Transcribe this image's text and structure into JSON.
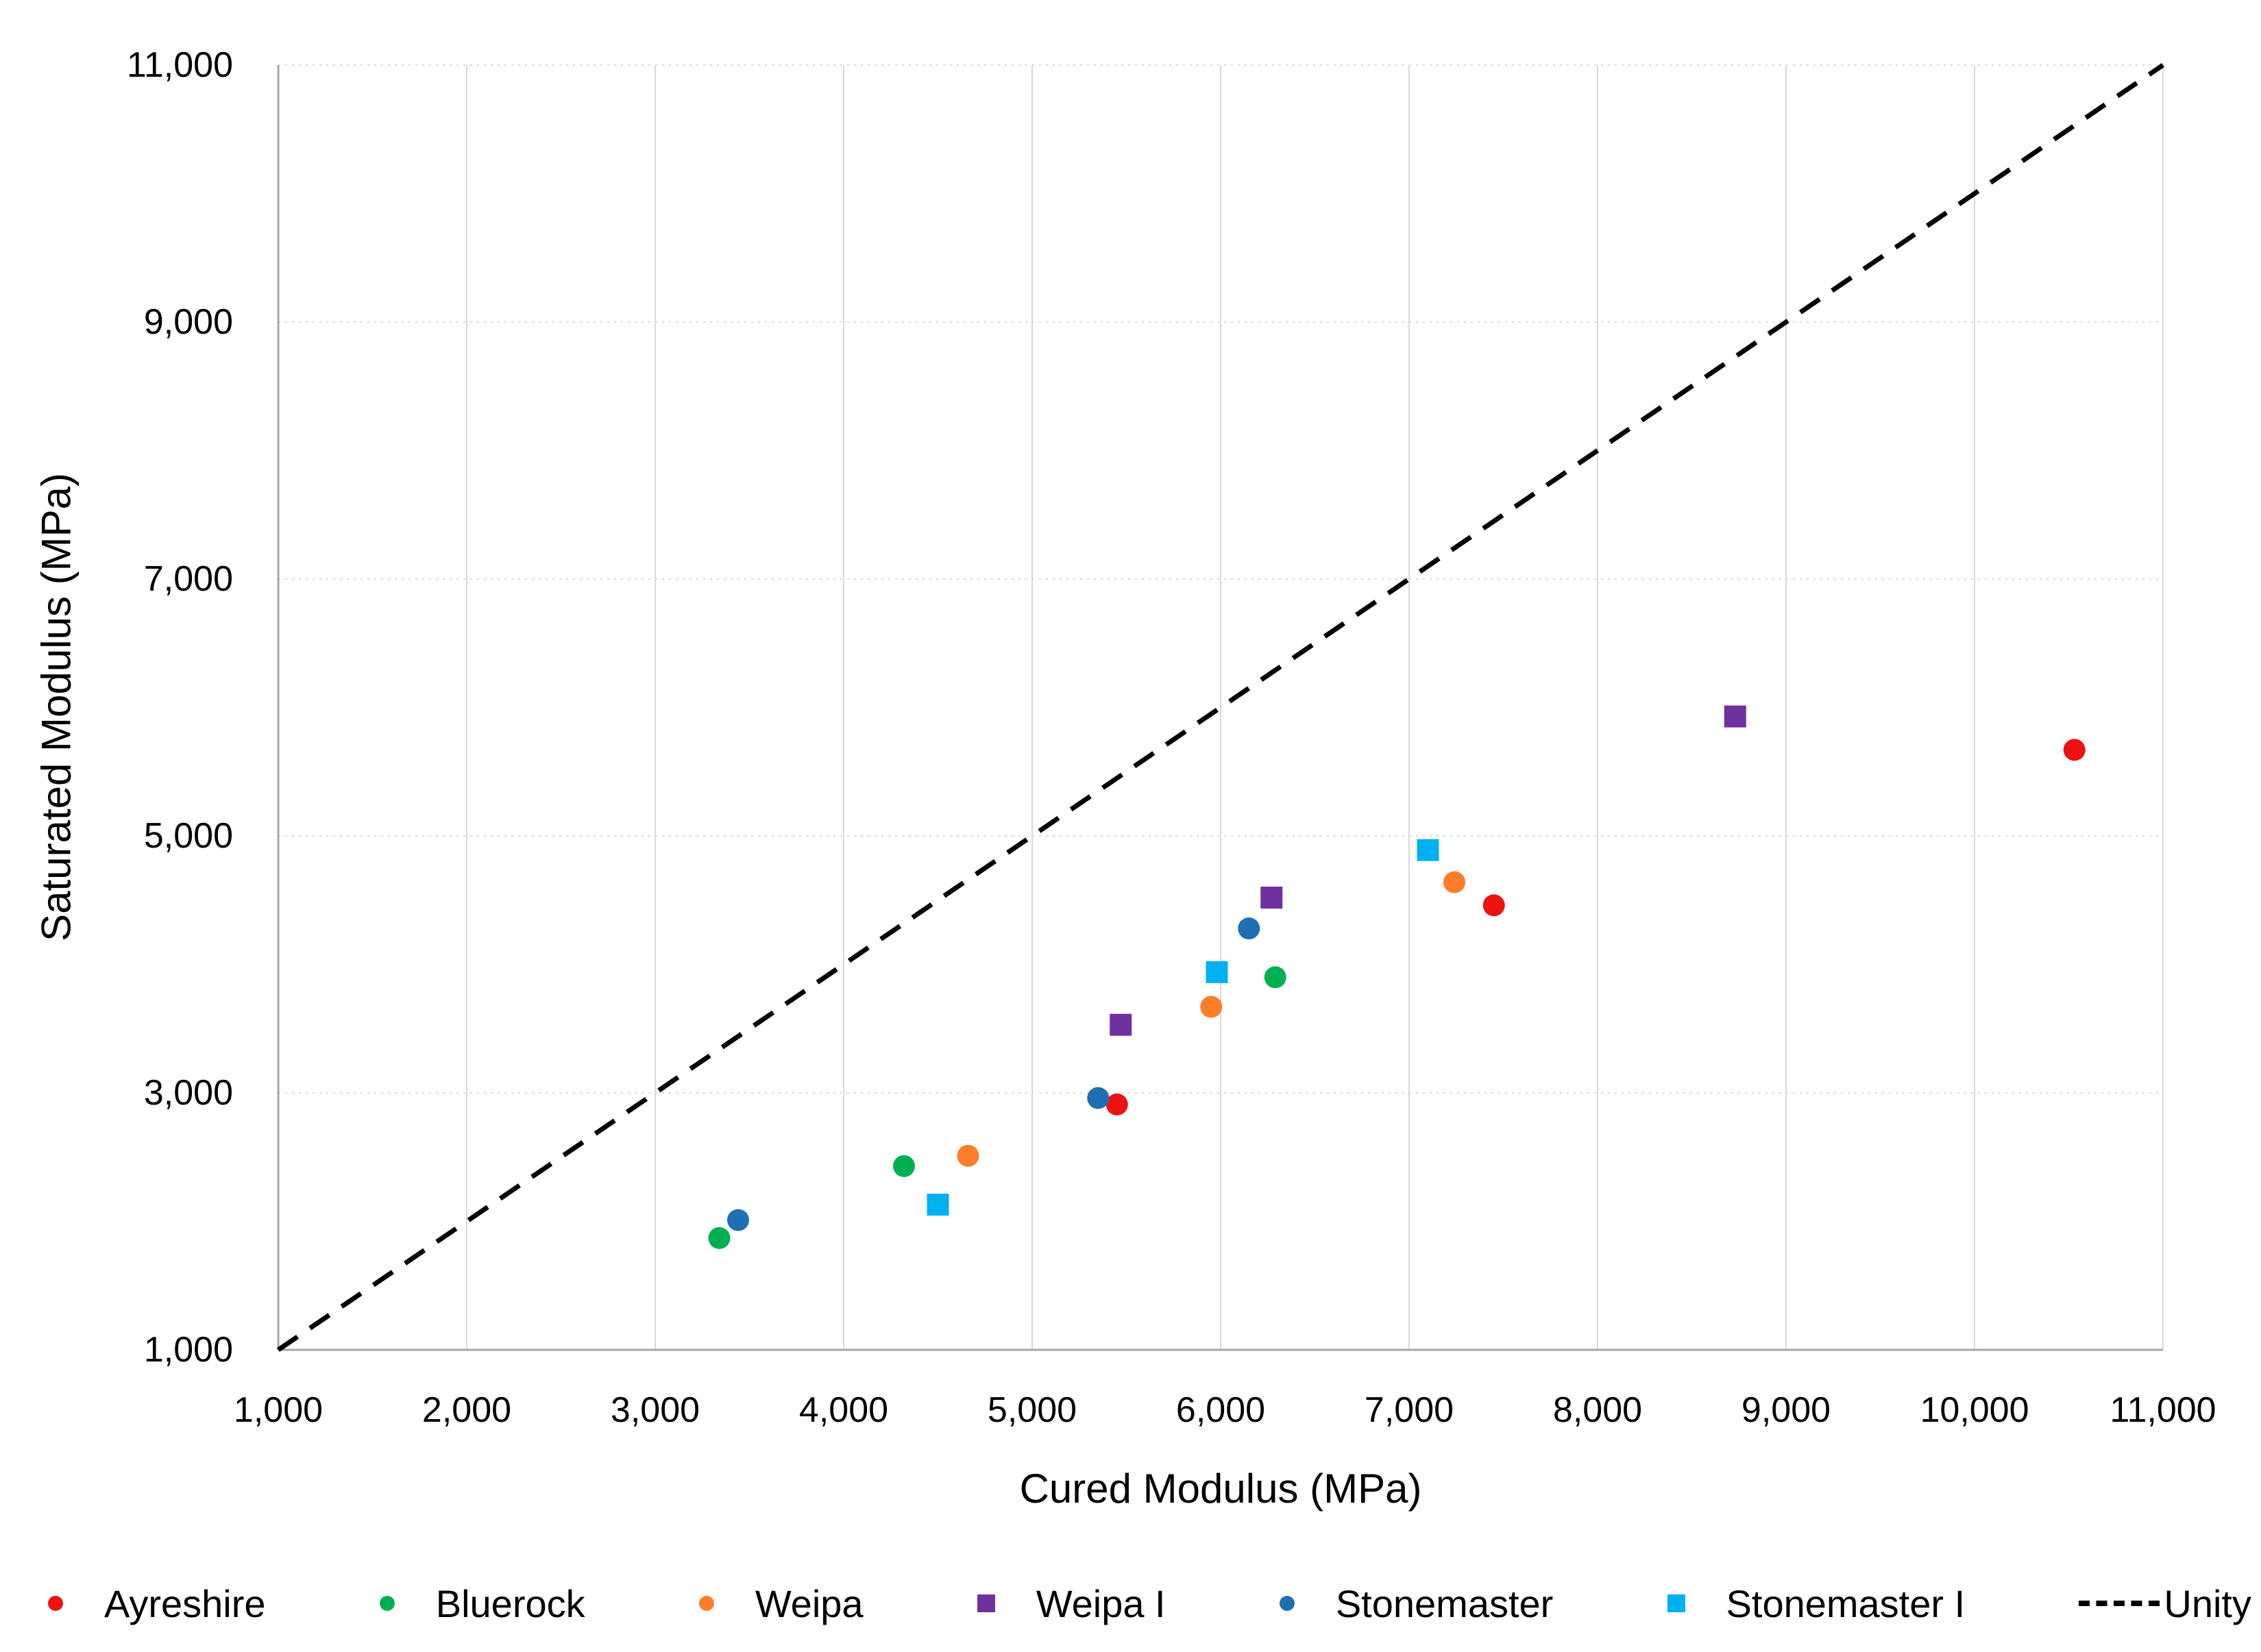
{
  "chart_data": {
    "type": "scatter",
    "title": "",
    "xlabel": "Cured Modulus (MPa)",
    "ylabel": "Saturated Modulus (MPa)",
    "xlim": [
      1000,
      11000
    ],
    "ylim": [
      1000,
      11000
    ],
    "grid": "on",
    "legend_position": "bottom",
    "x_ticks": [
      {
        "value": 1000,
        "label": "1,000"
      },
      {
        "value": 2000,
        "label": "2,000"
      },
      {
        "value": 3000,
        "label": "3,000"
      },
      {
        "value": 4000,
        "label": "4,000"
      },
      {
        "value": 5000,
        "label": "5,000"
      },
      {
        "value": 6000,
        "label": "6,000"
      },
      {
        "value": 7000,
        "label": "7,000"
      },
      {
        "value": 8000,
        "label": "8,000"
      },
      {
        "value": 9000,
        "label": "9,000"
      },
      {
        "value": 10000,
        "label": "10,000"
      },
      {
        "value": 11000,
        "label": "11,000"
      }
    ],
    "y_ticks": [
      {
        "value": 1000,
        "label": "1,000"
      },
      {
        "value": 3000,
        "label": "3,000"
      },
      {
        "value": 5000,
        "label": "5,000"
      },
      {
        "value": 7000,
        "label": "7,000"
      },
      {
        "value": 9000,
        "label": "9,000"
      },
      {
        "value": 11000,
        "label": "11,000"
      }
    ],
    "series": [
      {
        "name": "Ayreshire",
        "marker": "circle",
        "color": "#ee1111",
        "points": [
          [
            5450,
            2910
          ],
          [
            7450,
            4460
          ],
          [
            10530,
            5670
          ]
        ]
      },
      {
        "name": "Bluerock",
        "marker": "circle",
        "color": "#00b050",
        "points": [
          [
            3340,
            1870
          ],
          [
            4320,
            2430
          ],
          [
            6290,
            3900
          ]
        ]
      },
      {
        "name": "Weipa",
        "marker": "circle",
        "color": "#fd7e2a",
        "points": [
          [
            4660,
            2510
          ],
          [
            5950,
            3670
          ],
          [
            7240,
            4640
          ]
        ]
      },
      {
        "name": "Weipa I",
        "marker": "square",
        "color": "#7030a0",
        "points": [
          [
            5470,
            3530
          ],
          [
            6270,
            4520
          ],
          [
            8730,
            5930
          ]
        ]
      },
      {
        "name": "Stonemaster",
        "marker": "circle",
        "color": "#1f6fb5",
        "points": [
          [
            3440,
            2010
          ],
          [
            5350,
            2960
          ],
          [
            6150,
            4280
          ]
        ]
      },
      {
        "name": "Stonemaster I",
        "marker": "square",
        "color": "#00b0f0",
        "points": [
          [
            4500,
            2130
          ],
          [
            5980,
            3940
          ],
          [
            7100,
            4890
          ]
        ]
      }
    ],
    "reference_line": {
      "name": "Unity",
      "style": "dashed",
      "color": "#000000",
      "from": [
        1000,
        1000
      ],
      "to": [
        11000,
        11000
      ]
    },
    "colors": {
      "gridline": "#d9d9d9",
      "axis_line": "#a6a6a6",
      "text": "#000000"
    }
  }
}
